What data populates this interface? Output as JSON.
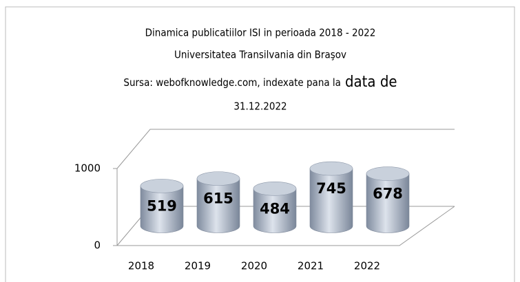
{
  "chart_data": {
    "type": "cylinder",
    "title": [
      "Dinamica publicatiilor ISI in perioada 2018 -  2022",
      "Universitatea Transilvania din Braşov",
      "Sursa: webofknowledge.com, indexate pana la",
      "data de",
      "31.12.2022"
    ],
    "categories": [
      "2018",
      "2019",
      "2020",
      "2021",
      "2022"
    ],
    "values": [
      519,
      615,
      484,
      745,
      678
    ],
    "color": "#b4bfcf",
    "ylim": [
      0,
      1000
    ],
    "yticks": [
      0,
      1000
    ],
    "grid": true
  }
}
